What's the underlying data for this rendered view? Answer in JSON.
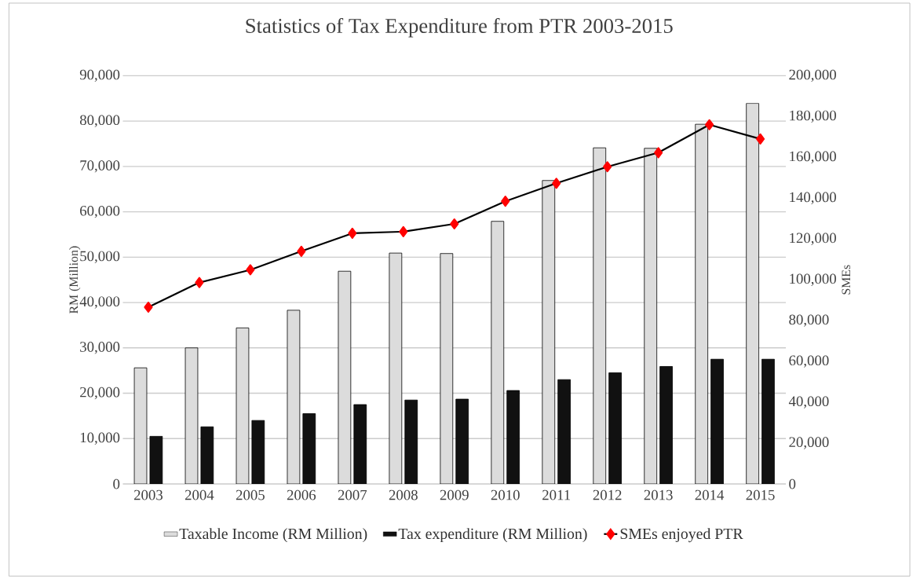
{
  "chart_data": {
    "type": "bar",
    "title": "Statistics of Tax Expenditure from PTR 2003-2015",
    "ylabel": "RM (Million)",
    "y2label": "SMEs",
    "categories": [
      "2003",
      "2004",
      "2005",
      "2006",
      "2007",
      "2008",
      "2009",
      "2010",
      "2011",
      "2012",
      "2013",
      "2014",
      "2015"
    ],
    "series": [
      {
        "name": "Taxable Income (RM Million)",
        "color": "#dcdcdc",
        "values": [
          25600,
          30000,
          34400,
          38300,
          46900,
          50900,
          50800,
          57900,
          66900,
          74100,
          74000,
          79300,
          83900
        ]
      },
      {
        "name": "Tax expenditure  (RM Million)",
        "color": "#111111",
        "values": [
          10500,
          12600,
          14000,
          15500,
          17500,
          18500,
          18700,
          20600,
          23000,
          24500,
          25900,
          27500,
          27500
        ]
      },
      {
        "name": "SMEs enjoyed PTR",
        "type": "line",
        "axis": "y2",
        "color": "#ff0000",
        "marker": "diamond",
        "values": [
          86600,
          98700,
          104900,
          114000,
          122800,
          123600,
          127400,
          138500,
          147300,
          155400,
          162300,
          176000,
          169000
        ]
      }
    ],
    "ylim": [
      0,
      90000
    ],
    "yticks": [
      0,
      {
        "value": 10000,
        "label": "10,000"
      },
      {
        "value": 20000,
        "label": "20,000"
      },
      {
        "value": 30000,
        "label": "30,000"
      },
      {
        "value": 40000,
        "label": "40,000"
      },
      {
        "value": 50000,
        "label": "50,000"
      },
      {
        "value": 60000,
        "label": "60,000"
      },
      {
        "value": 70000,
        "label": "70,000"
      },
      {
        "value": 80000,
        "label": "80,000"
      },
      {
        "value": 90000,
        "label": "90,000"
      }
    ],
    "y2lim": [
      0,
      200000
    ],
    "y2ticks": [
      0,
      {
        "value": 20000,
        "label": "20,000"
      },
      {
        "value": 40000,
        "label": "40,000"
      },
      {
        "value": 60000,
        "label": "60,000"
      },
      {
        "value": 80000,
        "label": "80,000"
      },
      {
        "value": 100000,
        "label": "100,000"
      },
      {
        "value": 120000,
        "label": "120,000"
      },
      {
        "value": 140000,
        "label": "140,000"
      },
      {
        "value": 160000,
        "label": "160,000"
      },
      {
        "value": 180000,
        "label": "180,000"
      },
      {
        "value": 200000,
        "label": "200,000"
      }
    ],
    "grid": "y",
    "legend": "bottom"
  }
}
